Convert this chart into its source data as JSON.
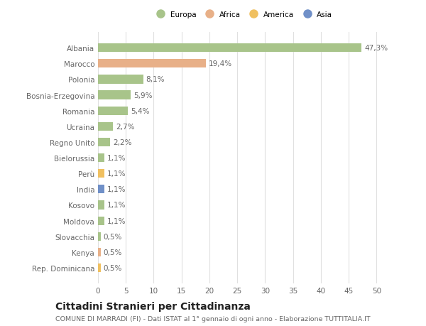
{
  "title": "Cittadini Stranieri per Cittadinanza",
  "subtitle": "COMUNE DI MARRADI (FI) - Dati ISTAT al 1° gennaio di ogni anno - Elaborazione TUTTITALIA.IT",
  "categories": [
    "Albania",
    "Marocco",
    "Polonia",
    "Bosnia-Erzegovina",
    "Romania",
    "Ucraina",
    "Regno Unito",
    "Bielorussia",
    "Perù",
    "India",
    "Kosovo",
    "Moldova",
    "Slovacchia",
    "Kenya",
    "Rep. Dominicana"
  ],
  "values": [
    47.3,
    19.4,
    8.1,
    5.9,
    5.4,
    2.7,
    2.2,
    1.1,
    1.1,
    1.1,
    1.1,
    1.1,
    0.5,
    0.5,
    0.5
  ],
  "labels": [
    "47,3%",
    "19,4%",
    "8,1%",
    "5,9%",
    "5,4%",
    "2,7%",
    "2,2%",
    "1,1%",
    "1,1%",
    "1,1%",
    "1,1%",
    "1,1%",
    "0,5%",
    "0,5%",
    "0,5%"
  ],
  "bar_colors": [
    "#a8c48a",
    "#e8b088",
    "#a8c48a",
    "#a8c48a",
    "#a8c48a",
    "#a8c48a",
    "#a8c48a",
    "#a8c48a",
    "#f0c060",
    "#7090c8",
    "#a8c48a",
    "#a8c48a",
    "#a8c48a",
    "#e8b088",
    "#f0c060"
  ],
  "legend_labels": [
    "Europa",
    "Africa",
    "America",
    "Asia"
  ],
  "legend_colors": [
    "#a8c48a",
    "#e8b088",
    "#f0c060",
    "#7090c8"
  ],
  "xlim": [
    0,
    52
  ],
  "xticks": [
    0,
    5,
    10,
    15,
    20,
    25,
    30,
    35,
    40,
    45,
    50
  ],
  "background_color": "#ffffff",
  "grid_color": "#e0e0e0",
  "bar_height": 0.55,
  "label_fontsize": 7.5,
  "tick_fontsize": 7.5,
  "title_fontsize": 10,
  "subtitle_fontsize": 6.8,
  "text_color": "#666666"
}
